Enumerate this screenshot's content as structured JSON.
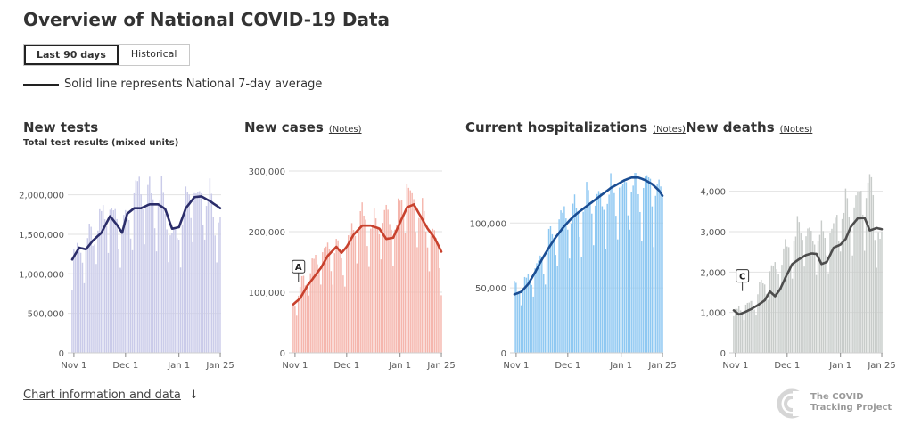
{
  "page": {
    "title": "Overview of National COVID-19 Data",
    "tabs": [
      {
        "label": "Last 90 days",
        "active": true
      },
      {
        "label": "Historical",
        "active": false
      }
    ],
    "legend_text": "Solid line represents National 7-day average",
    "info_link": "Chart information and data",
    "info_arrow": "↓",
    "logo_text": [
      "The COVID",
      "Tracking Project"
    ]
  },
  "chart_data": [
    {
      "type": "bar",
      "title": "New tests",
      "subtitle": "Total test results (mixed units)",
      "notes_label": "",
      "bar_color": "#cacbe9",
      "line_color": "#2b2d6a",
      "ylim": [
        0,
        2300000
      ],
      "yticks": [
        0,
        500000,
        1000000,
        1500000,
        2000000
      ],
      "ytick_labels": [
        "0",
        "500,000",
        "1,000,000",
        "1,500,000",
        "2,000,000"
      ],
      "xtick_labels": [
        "Nov 1",
        "Dec 1",
        "Jan 1",
        "Jan 25"
      ],
      "xtick_days": [
        1,
        31,
        62,
        86
      ],
      "days": 87,
      "bar_anchors": [
        [
          0,
          1200000
        ],
        [
          5,
          1250000
        ],
        [
          12,
          1400000
        ],
        [
          20,
          1750000
        ],
        [
          25,
          1700000
        ],
        [
          30,
          1500000
        ],
        [
          38,
          1950000
        ],
        [
          45,
          1900000
        ],
        [
          52,
          1900000
        ],
        [
          58,
          1450000
        ],
        [
          62,
          1550000
        ],
        [
          68,
          2000000
        ],
        [
          75,
          1950000
        ],
        [
          80,
          1900000
        ],
        [
          86,
          1600000
        ]
      ],
      "avg_anchors": [
        [
          0,
          1180000
        ],
        [
          4,
          1330000
        ],
        [
          8,
          1310000
        ],
        [
          12,
          1420000
        ],
        [
          17,
          1520000
        ],
        [
          22,
          1730000
        ],
        [
          26,
          1620000
        ],
        [
          29,
          1520000
        ],
        [
          32,
          1760000
        ],
        [
          36,
          1830000
        ],
        [
          40,
          1830000
        ],
        [
          45,
          1880000
        ],
        [
          50,
          1880000
        ],
        [
          54,
          1820000
        ],
        [
          58,
          1570000
        ],
        [
          62,
          1590000
        ],
        [
          66,
          1830000
        ],
        [
          71,
          1970000
        ],
        [
          75,
          1980000
        ],
        [
          80,
          1920000
        ],
        [
          86,
          1830000
        ]
      ],
      "annotations": []
    },
    {
      "type": "bar",
      "title": "New cases",
      "subtitle": "",
      "notes_label": "(Notes)",
      "bar_color": "#f5b6ad",
      "line_color": "#c8412d",
      "ylim": [
        0,
        300000
      ],
      "yticks": [
        0,
        100000,
        200000,
        300000
      ],
      "ytick_labels": [
        "0",
        "100,000",
        "200,000",
        "300,000"
      ],
      "xtick_labels": [
        "Nov 1",
        "Dec 1",
        "Jan 1",
        "Jan 25"
      ],
      "xtick_days": [
        1,
        31,
        62,
        86
      ],
      "days": 87,
      "bar_anchors": [
        [
          0,
          80000
        ],
        [
          6,
          110000
        ],
        [
          12,
          140000
        ],
        [
          20,
          170000
        ],
        [
          26,
          160000
        ],
        [
          30,
          150000
        ],
        [
          36,
          205000
        ],
        [
          42,
          215000
        ],
        [
          48,
          200000
        ],
        [
          54,
          230000
        ],
        [
          60,
          210000
        ],
        [
          65,
          280000
        ],
        [
          70,
          245000
        ],
        [
          76,
          215000
        ],
        [
          82,
          185000
        ],
        [
          86,
          140000
        ]
      ],
      "avg_anchors": [
        [
          0,
          80000
        ],
        [
          4,
          90000
        ],
        [
          8,
          110000
        ],
        [
          12,
          125000
        ],
        [
          16,
          140000
        ],
        [
          20,
          160000
        ],
        [
          25,
          175000
        ],
        [
          28,
          165000
        ],
        [
          31,
          175000
        ],
        [
          35,
          195000
        ],
        [
          40,
          210000
        ],
        [
          45,
          210000
        ],
        [
          50,
          205000
        ],
        [
          54,
          188000
        ],
        [
          58,
          190000
        ],
        [
          62,
          215000
        ],
        [
          66,
          240000
        ],
        [
          70,
          245000
        ],
        [
          74,
          225000
        ],
        [
          78,
          205000
        ],
        [
          82,
          190000
        ],
        [
          86,
          167000
        ]
      ],
      "annotations": [
        {
          "label": "A",
          "day": 3,
          "value": 132000
        }
      ]
    },
    {
      "type": "bar",
      "title": "Current hospitalizations",
      "subtitle": "",
      "notes_label": "(Notes)",
      "bar_color": "#8ec8f2",
      "line_color": "#1a4d93",
      "ylim": [
        0,
        140000
      ],
      "yticks": [
        0,
        50000,
        100000
      ],
      "ytick_labels": [
        "0",
        "50,000",
        "100,000"
      ],
      "xtick_labels": [
        "Nov 1",
        "Dec 1",
        "Jan 1",
        "Jan 25"
      ],
      "xtick_days": [
        1,
        31,
        62,
        86
      ],
      "days": 87,
      "bar_anchors": [
        [
          0,
          46000
        ],
        [
          5,
          49000
        ],
        [
          10,
          57000
        ],
        [
          15,
          70000
        ],
        [
          20,
          82000
        ],
        [
          25,
          92000
        ],
        [
          30,
          100000
        ],
        [
          35,
          104000
        ],
        [
          40,
          110000
        ],
        [
          45,
          115000
        ],
        [
          50,
          118000
        ],
        [
          55,
          121000
        ],
        [
          60,
          124000
        ],
        [
          65,
          127000
        ],
        [
          70,
          129000
        ],
        [
          75,
          127000
        ],
        [
          80,
          122000
        ],
        [
          86,
          110000
        ]
      ],
      "avg_anchors": [
        [
          0,
          45000
        ],
        [
          4,
          47000
        ],
        [
          8,
          53000
        ],
        [
          12,
          62000
        ],
        [
          16,
          72000
        ],
        [
          20,
          81000
        ],
        [
          24,
          89000
        ],
        [
          28,
          96000
        ],
        [
          32,
          102000
        ],
        [
          36,
          107000
        ],
        [
          40,
          111000
        ],
        [
          44,
          115000
        ],
        [
          48,
          119000
        ],
        [
          52,
          123000
        ],
        [
          56,
          127000
        ],
        [
          60,
          130000
        ],
        [
          64,
          133000
        ],
        [
          68,
          135000
        ],
        [
          72,
          135000
        ],
        [
          76,
          133000
        ],
        [
          80,
          130000
        ],
        [
          84,
          125000
        ],
        [
          86,
          121000
        ]
      ],
      "annotations": []
    },
    {
      "type": "bar",
      "title": "New deaths",
      "subtitle": "",
      "notes_label": "(Notes)",
      "bar_color": "#c8ccca",
      "line_color": "#4d4d4d",
      "ylim": [
        0,
        4500
      ],
      "yticks": [
        0,
        1000,
        2000,
        3000,
        4000
      ],
      "ytick_labels": [
        "0",
        "1,000",
        "2,000",
        "3,000",
        "4,000"
      ],
      "xtick_labels": [
        "Nov 1",
        "Dec 1",
        "Jan 1",
        "Jan 25"
      ],
      "xtick_days": [
        1,
        31,
        62,
        86
      ],
      "days": 87,
      "bar_anchors": [
        [
          0,
          900
        ],
        [
          5,
          1100
        ],
        [
          10,
          1200
        ],
        [
          15,
          1500
        ],
        [
          20,
          1800
        ],
        [
          25,
          2000
        ],
        [
          30,
          2400
        ],
        [
          35,
          2800
        ],
        [
          40,
          3000
        ],
        [
          45,
          2900
        ],
        [
          50,
          2900
        ],
        [
          55,
          2800
        ],
        [
          60,
          3300
        ],
        [
          65,
          3500
        ],
        [
          70,
          3600
        ],
        [
          75,
          3700
        ],
        [
          80,
          3800
        ],
        [
          86,
          2500
        ]
      ],
      "avg_anchors": [
        [
          0,
          1050
        ],
        [
          3,
          950
        ],
        [
          6,
          1000
        ],
        [
          10,
          1080
        ],
        [
          14,
          1180
        ],
        [
          18,
          1300
        ],
        [
          21,
          1520
        ],
        [
          24,
          1400
        ],
        [
          27,
          1580
        ],
        [
          30,
          1860
        ],
        [
          34,
          2200
        ],
        [
          38,
          2320
        ],
        [
          42,
          2420
        ],
        [
          45,
          2460
        ],
        [
          48,
          2450
        ],
        [
          51,
          2200
        ],
        [
          54,
          2250
        ],
        [
          58,
          2600
        ],
        [
          62,
          2680
        ],
        [
          65,
          2820
        ],
        [
          68,
          3120
        ],
        [
          72,
          3330
        ],
        [
          76,
          3340
        ],
        [
          79,
          3030
        ],
        [
          83,
          3090
        ],
        [
          86,
          3060
        ]
      ],
      "annotations": [
        {
          "label": "C",
          "day": 5,
          "value": 1750
        }
      ]
    }
  ]
}
